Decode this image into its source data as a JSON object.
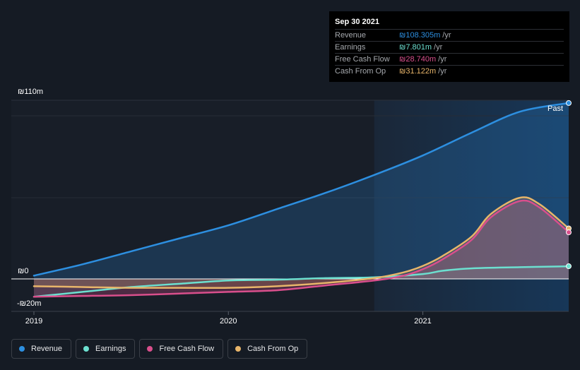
{
  "tooltip": {
    "date": "Sep 30 2021",
    "rows": [
      {
        "label": "Revenue",
        "value": "₪108.305m",
        "unit": "/yr",
        "color": "#2d8fe0"
      },
      {
        "label": "Earnings",
        "value": "₪7.801m",
        "unit": "/yr",
        "color": "#6ce0d0"
      },
      {
        "label": "Free Cash Flow",
        "value": "₪28.740m",
        "unit": "/yr",
        "color": "#d94f8c"
      },
      {
        "label": "Cash From Op",
        "value": "₪31.122m",
        "unit": "/yr",
        "color": "#e8b56a"
      }
    ]
  },
  "past_label": "Past",
  "legend": [
    {
      "label": "Revenue",
      "color": "#2d8fe0"
    },
    {
      "label": "Earnings",
      "color": "#6ce0d0"
    },
    {
      "label": "Free Cash Flow",
      "color": "#d94f8c"
    },
    {
      "label": "Cash From Op",
      "color": "#e8b56a"
    }
  ],
  "chart_data": {
    "type": "line",
    "y_tick_labels": [
      "₪110m",
      "₪0",
      "-₪20m"
    ],
    "x_tick_labels": [
      "2019",
      "2020",
      "2021"
    ],
    "ylim": [
      -20,
      110
    ],
    "xlim": [
      2019.0,
      2021.75
    ],
    "x_ticks": [
      2019,
      2020,
      2021
    ],
    "past_start": 2020.75,
    "series": [
      {
        "name": "Revenue",
        "color": "#2d8fe0",
        "x": [
          2019.0,
          2019.25,
          2019.5,
          2019.75,
          2020.0,
          2020.25,
          2020.5,
          2020.75,
          2021.0,
          2021.25,
          2021.5,
          2021.75
        ],
        "y": [
          2,
          9,
          17,
          25,
          33,
          43,
          53,
          64,
          76,
          90,
          103,
          108.3
        ]
      },
      {
        "name": "Earnings",
        "color": "#6ce0d0",
        "x": [
          2019.0,
          2019.25,
          2019.5,
          2019.75,
          2020.0,
          2020.25,
          2020.5,
          2020.75,
          2021.0,
          2021.1,
          2021.25,
          2021.5,
          2021.75
        ],
        "y": [
          -11,
          -8,
          -5,
          -3,
          -1,
          -0.5,
          0.5,
          1,
          3,
          5,
          6.5,
          7.2,
          7.8
        ]
      },
      {
        "name": "Free Cash Flow",
        "color": "#d94f8c",
        "x": [
          2019.0,
          2019.25,
          2019.5,
          2019.75,
          2020.0,
          2020.25,
          2020.5,
          2020.75,
          2020.9,
          2021.0,
          2021.1,
          2021.25,
          2021.35,
          2021.5,
          2021.6,
          2021.75
        ],
        "y": [
          -11,
          -10.5,
          -10,
          -9,
          -8,
          -7,
          -4,
          -1,
          2,
          6,
          12,
          24,
          38,
          48,
          44,
          28.7
        ]
      },
      {
        "name": "Cash From Op",
        "color": "#e8b56a",
        "x": [
          2019.0,
          2019.25,
          2019.5,
          2019.75,
          2020.0,
          2020.25,
          2020.5,
          2020.75,
          2020.9,
          2021.0,
          2021.1,
          2021.25,
          2021.35,
          2021.5,
          2021.6,
          2021.75
        ],
        "y": [
          -4.5,
          -5,
          -5.5,
          -5.5,
          -5.5,
          -4.5,
          -2.5,
          0.5,
          4,
          8,
          14,
          26,
          40,
          50,
          46,
          31.1
        ]
      }
    ]
  }
}
